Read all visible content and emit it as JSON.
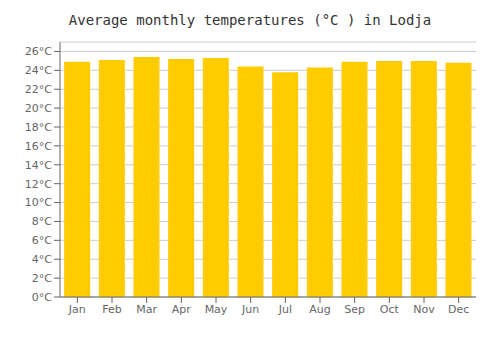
{
  "chart_data": {
    "type": "bar",
    "title": "Average monthly temperatures (°C ) in Lodja",
    "categories": [
      "Jan",
      "Feb",
      "Mar",
      "Apr",
      "May",
      "Jun",
      "Jul",
      "Aug",
      "Sep",
      "Oct",
      "Nov",
      "Dec"
    ],
    "values": [
      24.9,
      25.1,
      25.4,
      25.2,
      25.3,
      24.4,
      23.8,
      24.3,
      24.9,
      25.0,
      25.0,
      24.8
    ],
    "color": "#FFCC00",
    "ylim": [
      0,
      27
    ],
    "yticks": [
      {
        "value": 0,
        "label": "0°C"
      },
      {
        "value": 2,
        "label": "2°C"
      },
      {
        "value": 4,
        "label": "4°C"
      },
      {
        "value": 6,
        "label": "6°C"
      },
      {
        "value": 8,
        "label": "8°C"
      },
      {
        "value": 10,
        "label": "10°C"
      },
      {
        "value": 12,
        "label": "12°C"
      },
      {
        "value": 14,
        "label": "14°C"
      },
      {
        "value": 16,
        "label": "16°C"
      },
      {
        "value": 18,
        "label": "18°C"
      },
      {
        "value": 20,
        "label": "20°C"
      },
      {
        "value": 22,
        "label": "22°C"
      },
      {
        "value": 24,
        "label": "24°C"
      },
      {
        "value": 26,
        "label": "26°C"
      }
    ],
    "grid": true
  }
}
